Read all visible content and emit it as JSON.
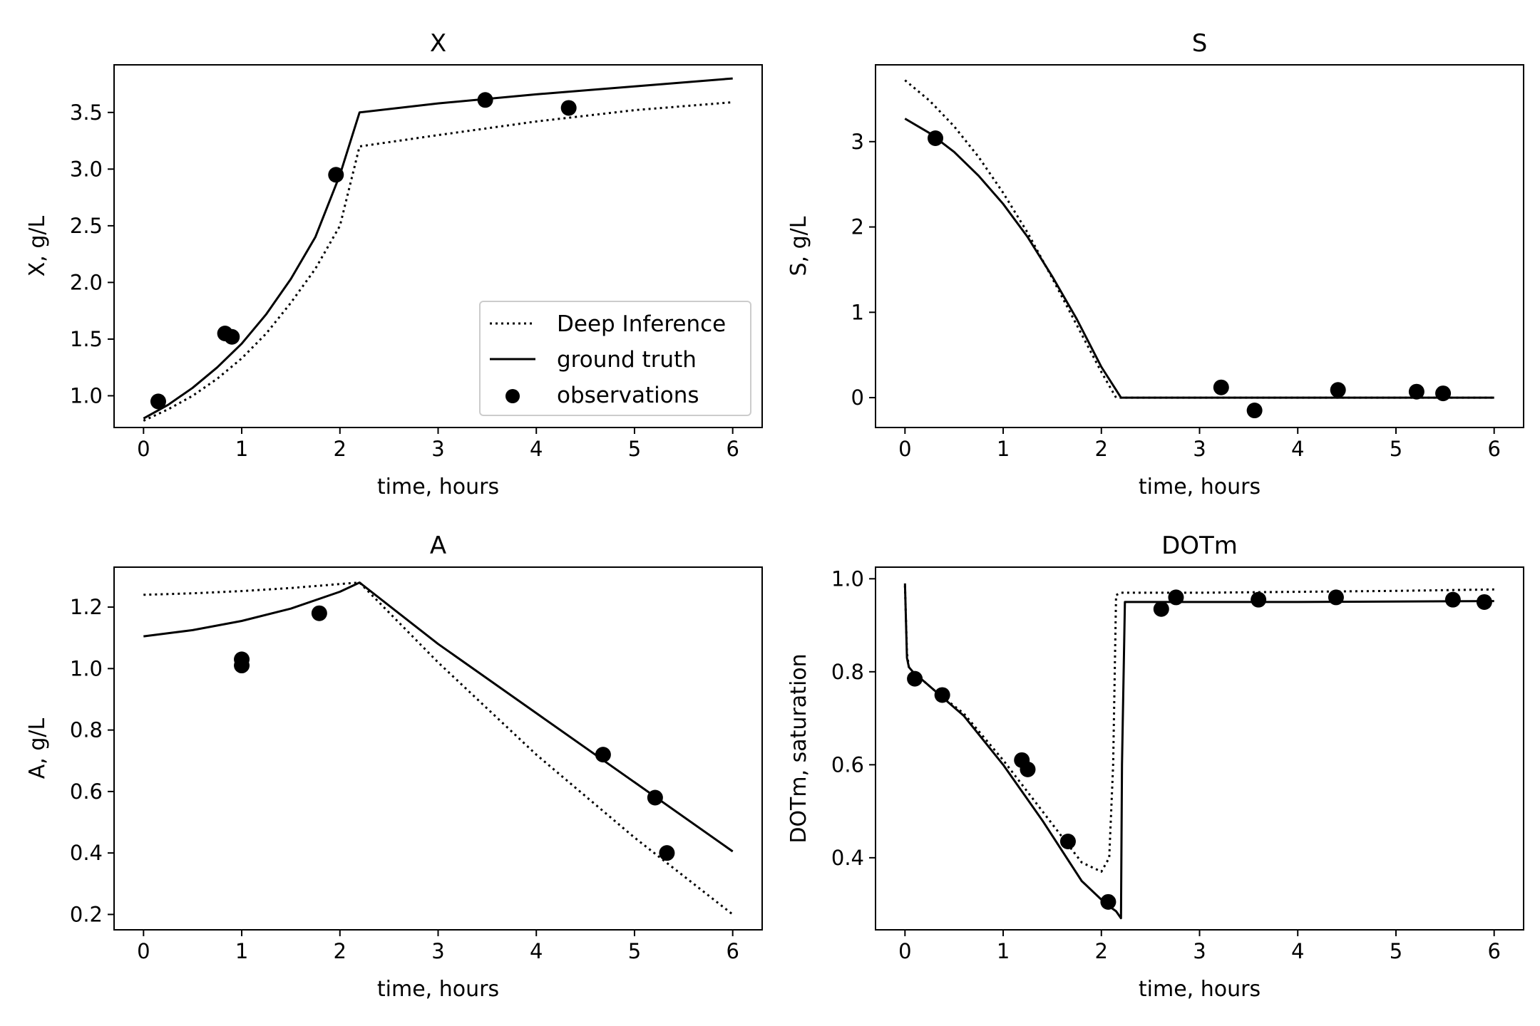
{
  "chart_data": [
    {
      "type": "line",
      "title": "X",
      "xlabel": "time, hours",
      "ylabel": "X, g/L",
      "xlim": [
        -0.3,
        6.3
      ],
      "ylim": [
        0.72,
        3.92
      ],
      "xticks": [
        "0",
        "1",
        "2",
        "3",
        "4",
        "5",
        "6"
      ],
      "yticks": [
        "1.0",
        "1.5",
        "2.0",
        "2.5",
        "3.0",
        "3.5"
      ],
      "legend": {
        "position": "lower-right",
        "entries": [
          {
            "label": "Deep Inference",
            "style": "dotted"
          },
          {
            "label": "ground truth",
            "style": "solid"
          },
          {
            "label": "observations",
            "style": "marker"
          }
        ]
      },
      "series": [
        {
          "name": "Deep Inference",
          "style": "dotted",
          "x": [
            0,
            0.25,
            0.5,
            0.75,
            1.0,
            1.25,
            1.5,
            1.75,
            2.0,
            2.2,
            3.0,
            4.0,
            5.0,
            6.0
          ],
          "y": [
            0.78,
            0.88,
            1.0,
            1.15,
            1.33,
            1.55,
            1.82,
            2.12,
            2.5,
            3.2,
            3.3,
            3.42,
            3.52,
            3.59
          ]
        },
        {
          "name": "ground truth",
          "style": "solid",
          "x": [
            0,
            0.25,
            0.5,
            0.75,
            1.0,
            1.25,
            1.5,
            1.75,
            2.0,
            2.2,
            3.0,
            4.0,
            5.0,
            6.0
          ],
          "y": [
            0.8,
            0.92,
            1.07,
            1.25,
            1.46,
            1.72,
            2.03,
            2.4,
            2.95,
            3.5,
            3.58,
            3.66,
            3.73,
            3.8
          ]
        },
        {
          "name": "observations",
          "style": "marker",
          "x": [
            0.15,
            0.83,
            0.9,
            1.96,
            3.48,
            4.33
          ],
          "y": [
            0.95,
            1.55,
            1.52,
            2.95,
            3.61,
            3.54
          ]
        }
      ]
    },
    {
      "type": "line",
      "title": "S",
      "xlabel": "time, hours",
      "ylabel": "S, g/L",
      "xlim": [
        -0.3,
        6.3
      ],
      "ylim": [
        -0.35,
        3.9
      ],
      "xticks": [
        "0",
        "1",
        "2",
        "3",
        "4",
        "5",
        "6"
      ],
      "yticks": [
        "0",
        "1",
        "2",
        "3"
      ],
      "series": [
        {
          "name": "Deep Inference",
          "style": "dotted",
          "x": [
            0,
            0.25,
            0.5,
            0.75,
            1.0,
            1.25,
            1.5,
            1.75,
            2.0,
            2.15,
            3.0,
            4.0,
            5.0,
            6.0
          ],
          "y": [
            3.72,
            3.48,
            3.18,
            2.82,
            2.4,
            1.93,
            1.4,
            0.85,
            0.3,
            0.0,
            0.0,
            0.0,
            0.0,
            0.0
          ]
        },
        {
          "name": "ground truth",
          "style": "solid",
          "x": [
            0,
            0.25,
            0.5,
            0.75,
            1.0,
            1.25,
            1.5,
            1.75,
            2.0,
            2.2,
            3.0,
            4.0,
            5.0,
            6.0
          ],
          "y": [
            3.27,
            3.1,
            2.88,
            2.6,
            2.27,
            1.88,
            1.42,
            0.92,
            0.36,
            0.0,
            0.0,
            0.0,
            0.0,
            0.0
          ]
        },
        {
          "name": "observations",
          "style": "marker",
          "x": [
            0.31,
            3.22,
            3.56,
            4.41,
            5.21,
            5.48
          ],
          "y": [
            3.04,
            0.12,
            -0.15,
            0.09,
            0.07,
            0.05
          ]
        }
      ]
    },
    {
      "type": "line",
      "title": "A",
      "xlabel": "time, hours",
      "ylabel": "A, g/L",
      "xlim": [
        -0.3,
        6.3
      ],
      "ylim": [
        0.15,
        1.33
      ],
      "xticks": [
        "0",
        "1",
        "2",
        "3",
        "4",
        "5",
        "6"
      ],
      "yticks": [
        "0.2",
        "0.4",
        "0.6",
        "0.8",
        "1.0",
        "1.2"
      ],
      "series": [
        {
          "name": "Deep Inference",
          "style": "dotted",
          "x": [
            0,
            0.5,
            1.0,
            1.5,
            2.0,
            2.2,
            3.0,
            4.0,
            5.0,
            6.0
          ],
          "y": [
            1.24,
            1.245,
            1.252,
            1.262,
            1.275,
            1.28,
            1.02,
            0.72,
            0.45,
            0.2
          ]
        },
        {
          "name": "ground truth",
          "style": "solid",
          "x": [
            0,
            0.5,
            1.0,
            1.5,
            2.0,
            2.2,
            3.0,
            4.0,
            5.0,
            6.0
          ],
          "y": [
            1.105,
            1.125,
            1.155,
            1.195,
            1.25,
            1.28,
            1.08,
            0.855,
            0.63,
            0.405
          ]
        },
        {
          "name": "observations",
          "style": "marker",
          "x": [
            1.0,
            1.0,
            1.79,
            4.68,
            5.21,
            5.33
          ],
          "y": [
            1.03,
            1.01,
            1.18,
            0.72,
            0.58,
            0.4
          ]
        }
      ]
    },
    {
      "type": "line",
      "title": "DOTm",
      "xlabel": "time, hours",
      "ylabel": "DOTm, saturation",
      "xlim": [
        -0.3,
        6.3
      ],
      "ylim": [
        0.245,
        1.025
      ],
      "xticks": [
        "0",
        "1",
        "2",
        "3",
        "4",
        "5",
        "6"
      ],
      "yticks": [
        "0.4",
        "0.6",
        "0.8",
        "1.0"
      ],
      "series": [
        {
          "name": "Deep Inference",
          "style": "dotted",
          "x": [
            0,
            0.02,
            0.04,
            0.08,
            0.3,
            0.6,
            1.0,
            1.4,
            1.8,
            2.0,
            2.08,
            2.12,
            2.15,
            2.2,
            3.0,
            4.0,
            5.0,
            6.0
          ],
          "y": [
            0.985,
            0.84,
            0.81,
            0.8,
            0.76,
            0.71,
            0.61,
            0.5,
            0.39,
            0.37,
            0.4,
            0.6,
            0.965,
            0.97,
            0.97,
            0.972,
            0.974,
            0.977
          ]
        },
        {
          "name": "ground truth",
          "style": "solid",
          "x": [
            0,
            0.02,
            0.04,
            0.08,
            0.3,
            0.6,
            1.0,
            1.4,
            1.8,
            2.05,
            2.15,
            2.2,
            2.21,
            2.24,
            3.0,
            4.0,
            5.0,
            6.0
          ],
          "y": [
            0.99,
            0.83,
            0.81,
            0.8,
            0.76,
            0.705,
            0.6,
            0.48,
            0.35,
            0.3,
            0.285,
            0.27,
            0.6,
            0.95,
            0.95,
            0.95,
            0.951,
            0.952
          ]
        },
        {
          "name": "observations",
          "style": "marker",
          "x": [
            0.1,
            0.38,
            1.19,
            1.25,
            1.66,
            2.07,
            2.61,
            2.76,
            3.6,
            4.39,
            5.58,
            5.9
          ],
          "y": [
            0.785,
            0.75,
            0.61,
            0.59,
            0.435,
            0.305,
            0.935,
            0.96,
            0.955,
            0.96,
            0.955,
            0.95
          ]
        }
      ]
    }
  ]
}
